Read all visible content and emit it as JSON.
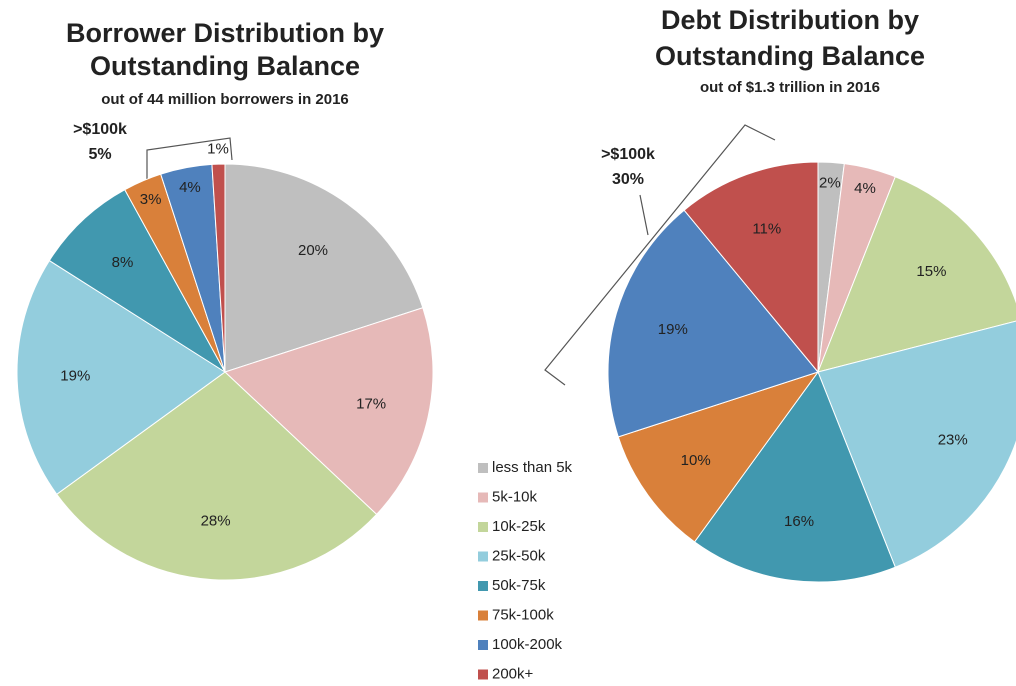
{
  "chart_data": [
    {
      "type": "pie",
      "title": [
        "Borrower Distribution by",
        "Outstanding Balance"
      ],
      "subtitle": "out of  44 million borrowers in 2016",
      "categories": [
        "less than 5k",
        "5k-10k",
        "10k-25k",
        "25k-50k",
        "50k-75k",
        "75k-100k",
        "100k-200k",
        "200k+"
      ],
      "values": [
        20,
        17,
        28,
        19,
        8,
        3,
        4,
        1
      ],
      "value_labels": [
        "20%",
        "17%",
        "28%",
        "19%",
        "8%",
        "3%",
        "4%",
        "1%"
      ],
      "colors": [
        "#bfbfbf",
        "#e6b9b8",
        "#c3d69b",
        "#93cddd",
        "#4198af",
        "#d9803a",
        "#4f81bd",
        "#c0504d"
      ],
      "annotations": [
        ">$100k",
        "5%"
      ]
    },
    {
      "type": "pie",
      "title": [
        "Debt Distribution by",
        "Outstanding Balance"
      ],
      "subtitle": "out of $1.3 trillion in 2016",
      "categories": [
        "less than 5k",
        "5k-10k",
        "10k-25k",
        "25k-50k",
        "50k-75k",
        "75k-100k",
        "100k-200k",
        "200k+"
      ],
      "values": [
        2,
        4,
        15,
        23,
        16,
        10,
        19,
        11
      ],
      "value_labels": [
        "2%",
        "4%",
        "15%",
        "23%",
        "16%",
        "10%",
        "19%",
        "11%"
      ],
      "colors": [
        "#bfbfbf",
        "#e6b9b8",
        "#c3d69b",
        "#93cddd",
        "#4198af",
        "#d9803a",
        "#4f81bd",
        "#c0504d"
      ],
      "annotations": [
        ">$100k",
        "30%"
      ]
    }
  ]
}
